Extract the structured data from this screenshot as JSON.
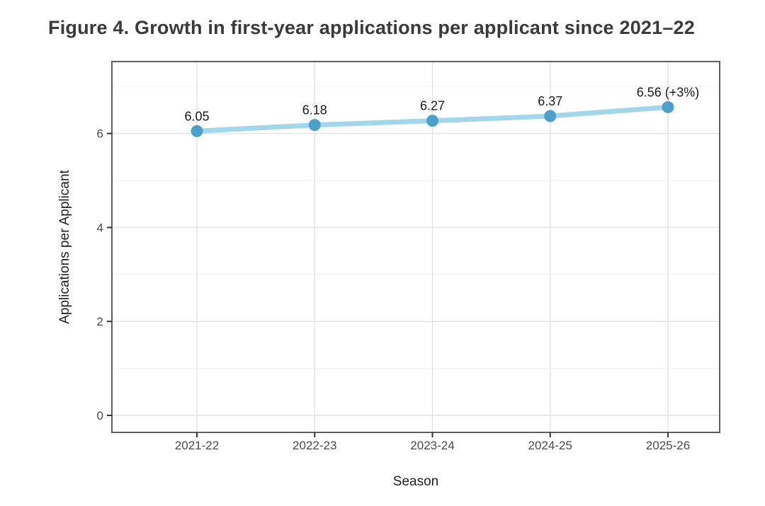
{
  "figure": {
    "title": "Figure 4. Growth in first-year applications per applicant since 2021–22"
  },
  "chart_data": {
    "type": "line",
    "title": "Figure 4. Growth in first-year applications per applicant since 2021–22",
    "categories": [
      "2021-22",
      "2022-23",
      "2023-24",
      "2024-25",
      "2025-26"
    ],
    "series": [
      {
        "name": "Applications per Applicant",
        "values": [
          6.05,
          6.18,
          6.27,
          6.37,
          6.56
        ]
      }
    ],
    "point_labels": [
      "6.05",
      "6.18",
      "6.27",
      "6.37",
      "6.56 (+3%)"
    ],
    "xlabel": "Season",
    "ylabel": "Applications per Applicant",
    "ylim": [
      -0.36,
      7.52
    ],
    "yticks": [
      0,
      2,
      4,
      6
    ],
    "yticks_minor": [
      1,
      3,
      5,
      7
    ],
    "grid": true,
    "legend": "none",
    "colors": {
      "line": "#a3d6ea",
      "point": "#4ba1cb",
      "grid_major": "#e4e4e4",
      "grid_minor": "#f2f2f2",
      "panel_border": "#5f5f61",
      "panel_background": "#ffffff",
      "tick": "#333333",
      "tick_label": "#4a4a4a",
      "axis_title": "#1f1f1f",
      "data_label": "#1a1a1a",
      "title": "#3a3a3a",
      "background": "#ffffff"
    }
  }
}
